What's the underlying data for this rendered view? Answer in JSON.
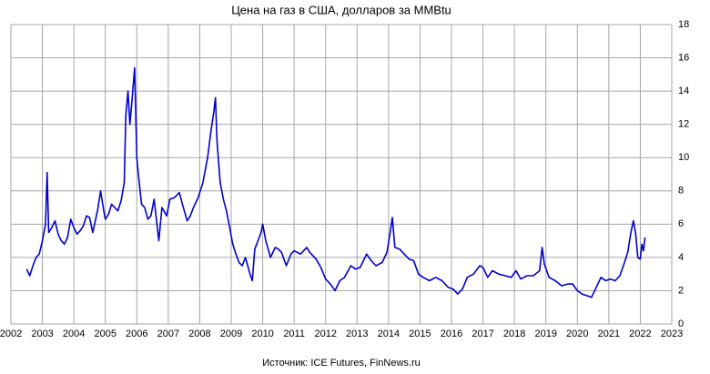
{
  "chart_data": {
    "type": "line",
    "title": "Цена на газ в США, долларов за MMBtu",
    "source": "Источник: ICE Futures, FinNews.ru",
    "x": [
      2002.5,
      2002.6,
      2002.7,
      2002.8,
      2002.9,
      2003.0,
      2003.1,
      2003.15,
      2003.2,
      2003.3,
      2003.4,
      2003.5,
      2003.6,
      2003.7,
      2003.8,
      2003.9,
      2004.0,
      2004.1,
      2004.2,
      2004.3,
      2004.4,
      2004.5,
      2004.6,
      2004.75,
      2004.85,
      2004.95,
      2005.0,
      2005.1,
      2005.2,
      2005.3,
      2005.4,
      2005.5,
      2005.6,
      2005.65,
      2005.72,
      2005.78,
      2005.85,
      2005.93,
      2006.0,
      2006.05,
      2006.15,
      2006.25,
      2006.35,
      2006.45,
      2006.55,
      2006.7,
      2006.8,
      2006.95,
      2007.05,
      2007.2,
      2007.35,
      2007.45,
      2007.6,
      2007.7,
      2007.8,
      2007.95,
      2008.1,
      2008.25,
      2008.35,
      2008.45,
      2008.5,
      2008.55,
      2008.65,
      2008.75,
      2008.85,
      2008.95,
      2009.05,
      2009.15,
      2009.25,
      2009.35,
      2009.45,
      2009.6,
      2009.67,
      2009.75,
      2009.85,
      2009.95,
      2010.0,
      2010.1,
      2010.25,
      2010.4,
      2010.5,
      2010.6,
      2010.75,
      2010.9,
      2011.0,
      2011.2,
      2011.4,
      2011.5,
      2011.7,
      2011.85,
      2012.0,
      2012.15,
      2012.3,
      2012.45,
      2012.6,
      2012.8,
      2012.95,
      2013.1,
      2013.3,
      2013.45,
      2013.6,
      2013.8,
      2013.95,
      2014.05,
      2014.12,
      2014.2,
      2014.35,
      2014.5,
      2014.65,
      2014.8,
      2014.95,
      2015.1,
      2015.3,
      2015.5,
      2015.7,
      2015.9,
      2016.05,
      2016.2,
      2016.35,
      2016.5,
      2016.7,
      2016.9,
      2017.0,
      2017.15,
      2017.3,
      2017.5,
      2017.7,
      2017.9,
      2018.05,
      2018.2,
      2018.4,
      2018.6,
      2018.8,
      2018.88,
      2018.95,
      2019.1,
      2019.3,
      2019.5,
      2019.7,
      2019.85,
      2020.0,
      2020.15,
      2020.3,
      2020.45,
      2020.6,
      2020.75,
      2020.9,
      2021.05,
      2021.2,
      2021.35,
      2021.5,
      2021.6,
      2021.7,
      2021.78,
      2021.85,
      2021.92,
      2022.0,
      2022.05,
      2022.1,
      2022.15
    ],
    "series": [
      {
        "name": "Цена",
        "color": "#0000cc",
        "values": [
          3.3,
          2.9,
          3.5,
          4.0,
          4.2,
          5.0,
          6.0,
          9.1,
          5.5,
          5.8,
          6.2,
          5.4,
          5.0,
          4.8,
          5.2,
          6.3,
          5.8,
          5.4,
          5.6,
          5.9,
          6.5,
          6.4,
          5.5,
          6.8,
          8.0,
          6.8,
          6.3,
          6.6,
          7.2,
          7.0,
          6.8,
          7.4,
          8.5,
          12.5,
          14.0,
          12.0,
          13.5,
          15.4,
          10.0,
          9.0,
          7.2,
          7.0,
          6.3,
          6.5,
          7.5,
          5.0,
          7.0,
          6.5,
          7.5,
          7.6,
          7.9,
          7.2,
          6.2,
          6.5,
          7.0,
          7.6,
          8.5,
          10.0,
          11.5,
          12.8,
          13.6,
          11.0,
          8.5,
          7.5,
          6.8,
          5.8,
          4.8,
          4.2,
          3.7,
          3.5,
          4.0,
          3.0,
          2.6,
          4.5,
          5.0,
          5.5,
          6.0,
          5.0,
          4.0,
          4.6,
          4.5,
          4.3,
          3.5,
          4.2,
          4.4,
          4.2,
          4.6,
          4.3,
          3.9,
          3.4,
          2.7,
          2.4,
          2.0,
          2.6,
          2.8,
          3.5,
          3.3,
          3.4,
          4.2,
          3.8,
          3.5,
          3.7,
          4.3,
          5.5,
          6.4,
          4.6,
          4.5,
          4.2,
          3.9,
          3.8,
          3.0,
          2.8,
          2.6,
          2.8,
          2.6,
          2.2,
          2.1,
          1.8,
          2.1,
          2.8,
          3.0,
          3.5,
          3.4,
          2.8,
          3.2,
          3.0,
          2.9,
          2.8,
          3.2,
          2.7,
          2.9,
          2.9,
          3.2,
          4.6,
          3.6,
          2.8,
          2.6,
          2.3,
          2.4,
          2.4,
          2.0,
          1.8,
          1.7,
          1.6,
          2.2,
          2.8,
          2.6,
          2.7,
          2.6,
          2.9,
          3.7,
          4.3,
          5.5,
          6.2,
          5.5,
          4.0,
          3.9,
          4.8,
          4.4,
          5.2
        ]
      }
    ],
    "xlim": [
      2002,
      2023
    ],
    "xticks": [
      2002,
      2003,
      2004,
      2005,
      2006,
      2007,
      2008,
      2009,
      2010,
      2011,
      2012,
      2013,
      2014,
      2015,
      2016,
      2017,
      2018,
      2019,
      2020,
      2021,
      2022,
      2023
    ],
    "ylim": [
      0,
      18
    ],
    "yticks": [
      0,
      2,
      4,
      6,
      8,
      10,
      12,
      14,
      16,
      18
    ],
    "grid": true
  }
}
